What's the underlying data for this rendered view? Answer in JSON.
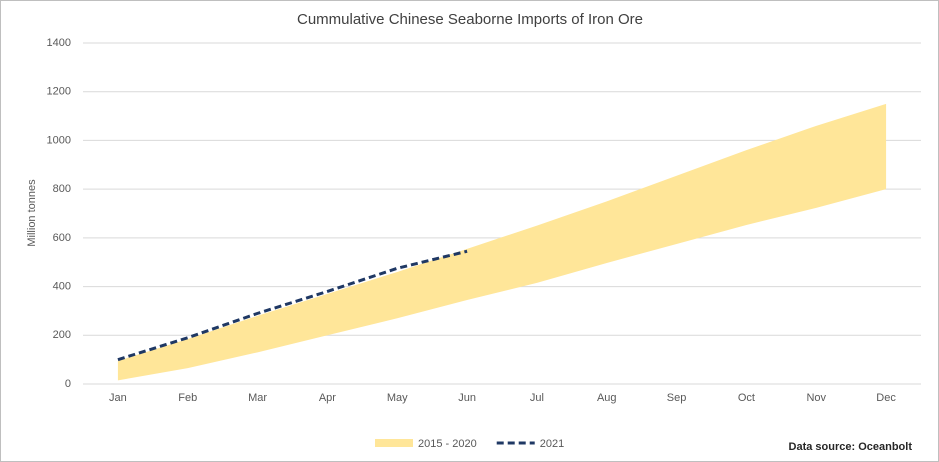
{
  "chart_data": {
    "type": "range-line",
    "title": "Cummulative Chinese Seaborne Imports of Iron Ore",
    "y_label": "Million tonnes",
    "annotation": "Data source: Oceanbolt",
    "categories": [
      "Jan",
      "Feb",
      "Mar",
      "Apr",
      "May",
      "Jun",
      "Jul",
      "Aug",
      "Sep",
      "Oct",
      "Nov",
      "Dec"
    ],
    "series": [
      {
        "name": "2015 - 2020",
        "color": "#ffe699",
        "kind": "band",
        "low": [
          15,
          65,
          130,
          200,
          270,
          345,
          415,
          497,
          575,
          653,
          723,
          800
        ],
        "high": [
          95,
          185,
          280,
          370,
          460,
          555,
          650,
          750,
          855,
          960,
          1060,
          1150
        ]
      },
      {
        "name": "2021",
        "color": "#1f3864",
        "kind": "line",
        "dashed": true,
        "values": [
          100,
          190,
          290,
          380,
          475,
          545,
          null,
          null,
          null,
          null,
          null,
          null
        ]
      }
    ],
    "ylim": [
      0,
      1400
    ],
    "yticks": [
      0,
      200,
      400,
      600,
      800,
      1000,
      1200,
      1400
    ],
    "grid": true
  }
}
